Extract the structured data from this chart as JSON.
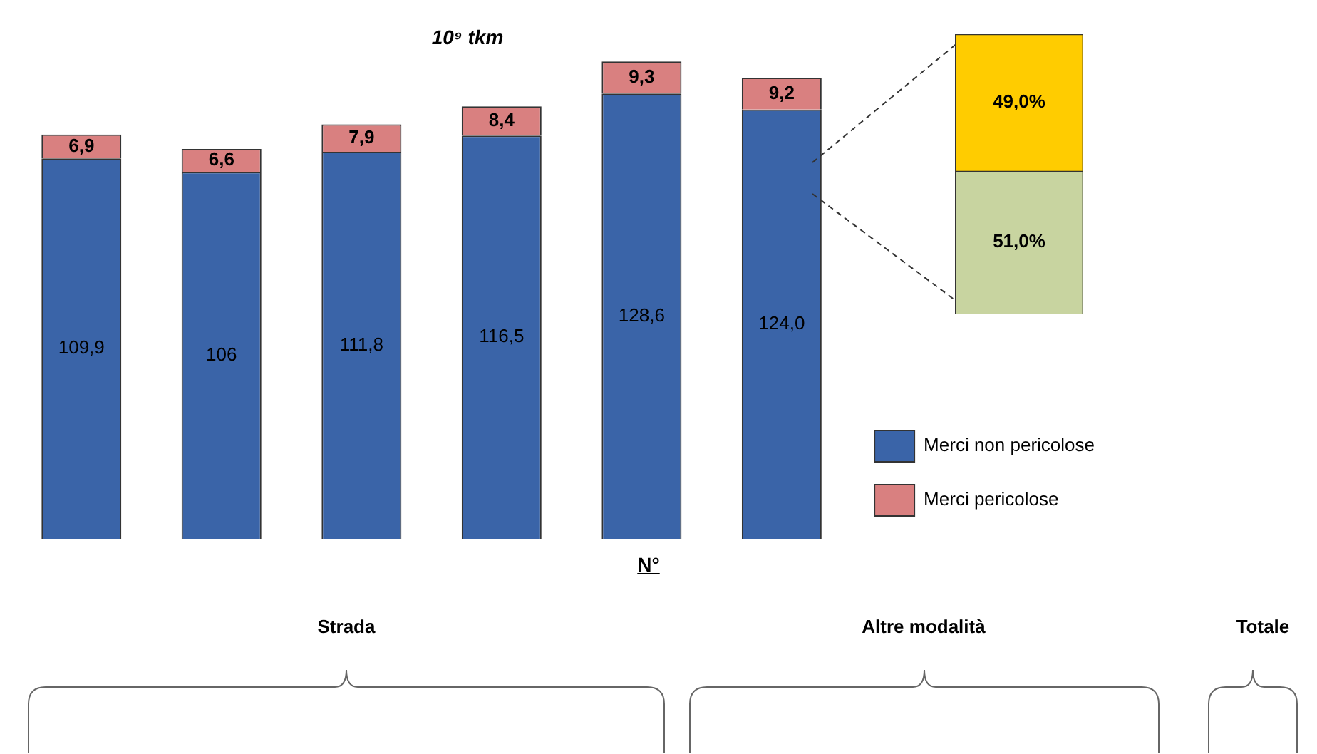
{
  "chart_data": [
    {
      "type": "bar",
      "title": "10⁹ tkm",
      "stacked": true,
      "categories": [
        null,
        null,
        null,
        null,
        null,
        null
      ],
      "tick_labels": false,
      "legend": "right",
      "series": [
        {
          "name": "Merci non pericolose",
          "color": "#3a64a8",
          "values": [
            109.9,
            106,
            111.8,
            116.5,
            128.6,
            124.0
          ],
          "value_labels": [
            "109,9",
            "106",
            "111,8",
            "116,5",
            "128,6",
            "124,0"
          ]
        },
        {
          "name": "Merci pericolose",
          "color": "#d98080",
          "values": [
            6.9,
            6.6,
            7.9,
            8.4,
            9.3,
            9.2
          ],
          "value_labels": [
            "6,9",
            "6,6",
            "7,9",
            "8,4",
            "9,3",
            "9,2"
          ]
        }
      ]
    },
    {
      "type": "bar",
      "stacked": true,
      "categories": [
        null
      ],
      "tick_labels": false,
      "series": [
        {
          "color": "#c8d4a0",
          "values": [
            51.0
          ],
          "value_labels": [
            "51,0%"
          ]
        },
        {
          "color": "#ffcc00",
          "values": [
            49.0
          ],
          "value_labels": [
            "49,0%"
          ]
        }
      ]
    },
    {
      "type": "other",
      "annotations": [
        "N°",
        "Strada",
        "Altre modalità",
        "Totale"
      ]
    }
  ]
}
